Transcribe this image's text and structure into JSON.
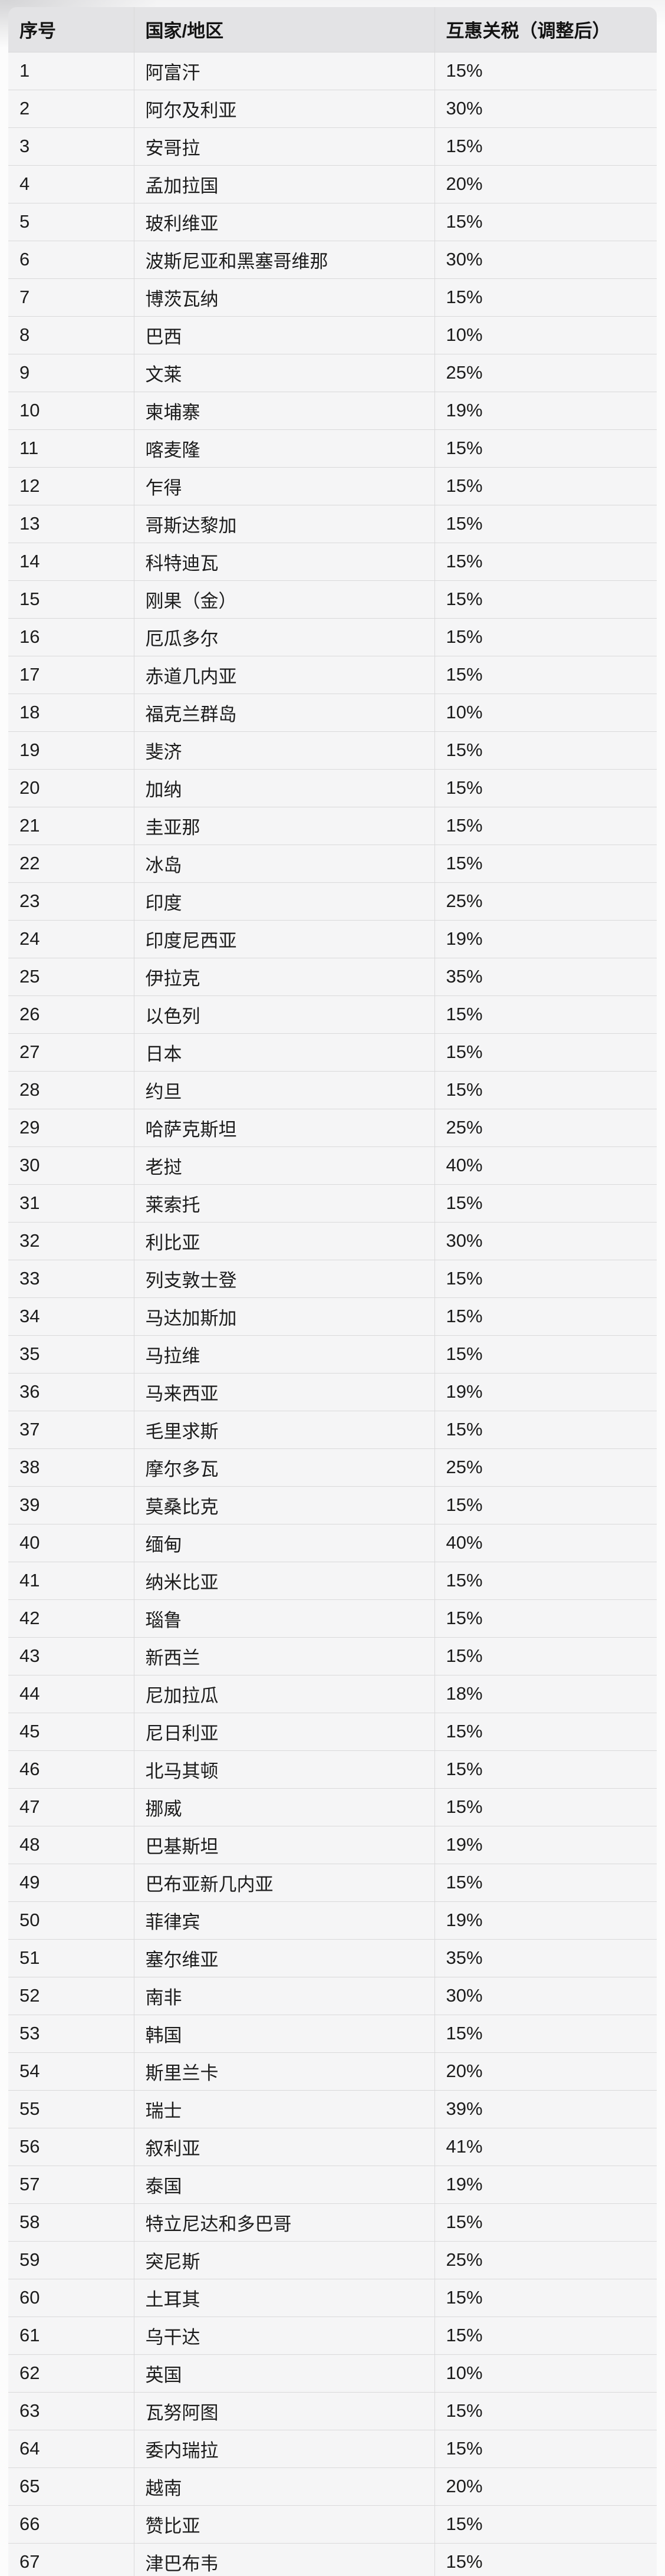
{
  "table": {
    "columns": [
      "序号",
      "国家/地区",
      "互惠关税（调整后）"
    ],
    "rows": [
      [
        "1",
        "阿富汗",
        "15%"
      ],
      [
        "2",
        "阿尔及利亚",
        "30%"
      ],
      [
        "3",
        "安哥拉",
        "15%"
      ],
      [
        "4",
        "孟加拉国",
        "20%"
      ],
      [
        "5",
        "玻利维亚",
        "15%"
      ],
      [
        "6",
        "波斯尼亚和黑塞哥维那",
        "30%"
      ],
      [
        "7",
        "博茨瓦纳",
        "15%"
      ],
      [
        "8",
        "巴西",
        "10%"
      ],
      [
        "9",
        "文莱",
        "25%"
      ],
      [
        "10",
        "柬埔寨",
        "19%"
      ],
      [
        "11",
        "喀麦隆",
        "15%"
      ],
      [
        "12",
        "乍得",
        "15%"
      ],
      [
        "13",
        "哥斯达黎加",
        "15%"
      ],
      [
        "14",
        "科特迪瓦",
        "15%"
      ],
      [
        "15",
        "刚果（金）",
        "15%"
      ],
      [
        "16",
        "厄瓜多尔",
        "15%"
      ],
      [
        "17",
        "赤道几内亚",
        "15%"
      ],
      [
        "18",
        "福克兰群岛",
        "10%"
      ],
      [
        "19",
        "斐济",
        "15%"
      ],
      [
        "20",
        "加纳",
        "15%"
      ],
      [
        "21",
        "圭亚那",
        "15%"
      ],
      [
        "22",
        "冰岛",
        "15%"
      ],
      [
        "23",
        "印度",
        "25%"
      ],
      [
        "24",
        "印度尼西亚",
        "19%"
      ],
      [
        "25",
        "伊拉克",
        "35%"
      ],
      [
        "26",
        "以色列",
        "15%"
      ],
      [
        "27",
        "日本",
        "15%"
      ],
      [
        "28",
        "约旦",
        "15%"
      ],
      [
        "29",
        "哈萨克斯坦",
        "25%"
      ],
      [
        "30",
        "老挝",
        "40%"
      ],
      [
        "31",
        "莱索托",
        "15%"
      ],
      [
        "32",
        "利比亚",
        "30%"
      ],
      [
        "33",
        "列支敦士登",
        "15%"
      ],
      [
        "34",
        "马达加斯加",
        "15%"
      ],
      [
        "35",
        "马拉维",
        "15%"
      ],
      [
        "36",
        "马来西亚",
        "19%"
      ],
      [
        "37",
        "毛里求斯",
        "15%"
      ],
      [
        "38",
        "摩尔多瓦",
        "25%"
      ],
      [
        "39",
        "莫桑比克",
        "15%"
      ],
      [
        "40",
        "缅甸",
        "40%"
      ],
      [
        "41",
        "纳米比亚",
        "15%"
      ],
      [
        "42",
        "瑙鲁",
        "15%"
      ],
      [
        "43",
        "新西兰",
        "15%"
      ],
      [
        "44",
        "尼加拉瓜",
        "18%"
      ],
      [
        "45",
        "尼日利亚",
        "15%"
      ],
      [
        "46",
        "北马其顿",
        "15%"
      ],
      [
        "47",
        "挪威",
        "15%"
      ],
      [
        "48",
        "巴基斯坦",
        "19%"
      ],
      [
        "49",
        "巴布亚新几内亚",
        "15%"
      ],
      [
        "50",
        "菲律宾",
        "19%"
      ],
      [
        "51",
        "塞尔维亚",
        "35%"
      ],
      [
        "52",
        "南非",
        "30%"
      ],
      [
        "53",
        "韩国",
        "15%"
      ],
      [
        "54",
        "斯里兰卡",
        "20%"
      ],
      [
        "55",
        "瑞士",
        "39%"
      ],
      [
        "56",
        "叙利亚",
        "41%"
      ],
      [
        "57",
        "泰国",
        "19%"
      ],
      [
        "58",
        "特立尼达和多巴哥",
        "15%"
      ],
      [
        "59",
        "突尼斯",
        "25%"
      ],
      [
        "60",
        "土耳其",
        "15%"
      ],
      [
        "61",
        "乌干达",
        "15%"
      ],
      [
        "62",
        "英国",
        "10%"
      ],
      [
        "63",
        "瓦努阿图",
        "15%"
      ],
      [
        "64",
        "委内瑞拉",
        "15%"
      ],
      [
        "65",
        "越南",
        "20%"
      ],
      [
        "66",
        "赞比亚",
        "15%"
      ],
      [
        "67",
        "津巴布韦",
        "15%"
      ]
    ]
  },
  "colors": {
    "header_bg": "#e3e3e5",
    "row_bg": "#f5f5f6",
    "border": "#d9d9da",
    "page_bg": "#fcfcfc",
    "text": "#1c1c1c"
  }
}
